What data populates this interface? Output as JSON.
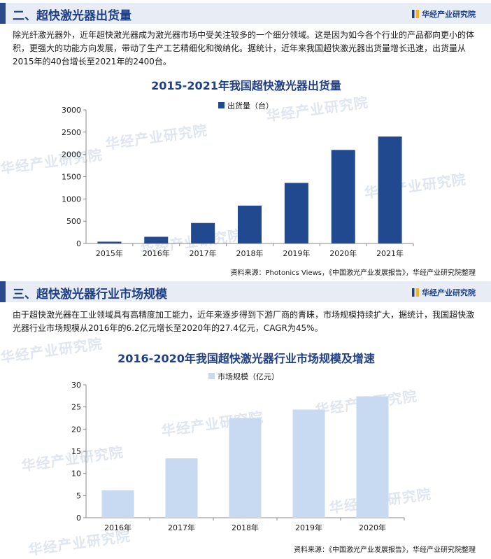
{
  "branding": {
    "logo_text": "华经产业研究院",
    "watermark": "华经产业研究院"
  },
  "section1": {
    "title": "二、超快激光器出货量",
    "paragraph": "除光纤激光器外，近年超快激光器成为激光器市场中受关注较多的一个细分领域。这是因为如今各个行业的产品都向更小的体积，更强大的功能方向发展，带动了生产工艺精细化和微纳化。据统计，近年来我国超快激光器出货量增长迅速，出货量从2015年的40台增长至2021年的2400台。",
    "source": "资料来源：Photonics Views，《中国激光产业发展报告》，华经产业研究院整理"
  },
  "section2": {
    "title": "三、超快激光器行业市场规模",
    "paragraph": "由于超快激光器在工业领域具有高精度加工能力，近年来逐步得到下游厂商的青睐，市场规模持续扩大，据统计，我国超快激光器行业市场规模从2016年的6.2亿元增长至2020年的27.4亿元，CAGR为45%。",
    "source": "资料来源：《中国激光产业发展报告》，华经产业研究院整理"
  },
  "chart_data": [
    {
      "type": "bar",
      "title": "2015-2021年我国超快激光器出货量",
      "categories": [
        "2015年",
        "2016年",
        "2017年",
        "2018年",
        "2019年",
        "2020年",
        "2021年"
      ],
      "series": [
        {
          "name": "出货量（台）",
          "values": [
            40,
            150,
            460,
            850,
            1360,
            2100,
            2400
          ],
          "color": "#21498f"
        }
      ],
      "ylim": [
        0,
        3000
      ],
      "yticks": [
        0,
        500,
        1000,
        1500,
        2000,
        2500,
        3000
      ],
      "legend": "top-center",
      "grid": false
    },
    {
      "type": "bar",
      "title": "2016-2020年我国超快激光器行业市场规模及增速",
      "categories": [
        "2016年",
        "2017年",
        "2018年",
        "2019年",
        "2020年"
      ],
      "series": [
        {
          "name": "市场规模（亿元）",
          "values": [
            6.2,
            13.4,
            22.5,
            24.4,
            27.4
          ],
          "color": "#c8daf2"
        }
      ],
      "ylim": [
        0,
        30
      ],
      "yticks": [
        0,
        5,
        10,
        15,
        20,
        25,
        30
      ],
      "legend": "top-center",
      "grid": false
    }
  ]
}
